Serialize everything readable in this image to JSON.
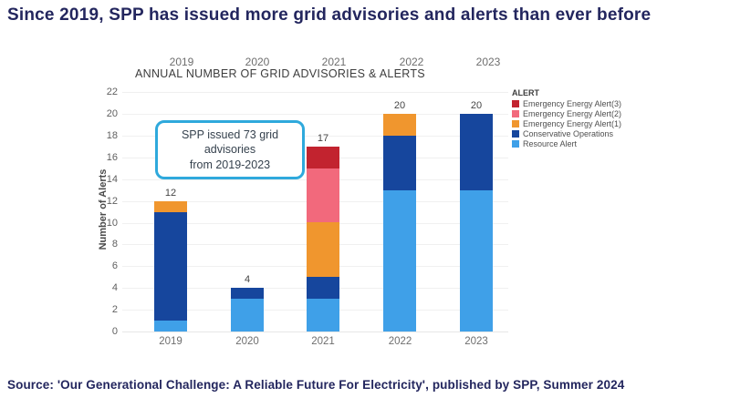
{
  "page": {
    "title": "Since 2019, SPP has issued more grid advisories and alerts than ever before",
    "source": "Source: 'Our Generational Challenge: A Reliable Future For Electricity', published by SPP, Summer 2024"
  },
  "annotation": {
    "line1": "SPP issued 73 grid advisories",
    "line2": "from 2019-2023"
  },
  "colors": {
    "title_text": "#23265E",
    "annotation_border": "#2FA9DC",
    "gridline": "#F0F0F0",
    "axis_text": "#5F5F5F"
  },
  "chart_data": {
    "type": "bar",
    "stacked": true,
    "title": "ANNUAL NUMBER OF GRID ADVISORIES & ALERTS",
    "xlabel": "",
    "ylabel": "Number of Alerts",
    "categories": [
      "2019",
      "2020",
      "2021",
      "2022",
      "2023"
    ],
    "series": [
      {
        "name": "Resource Alert",
        "color": "#3FA0E8",
        "values": [
          1,
          3,
          3,
          13,
          13
        ]
      },
      {
        "name": "Conservative Operations",
        "color": "#16469D",
        "values": [
          10,
          1,
          2,
          5,
          7
        ]
      },
      {
        "name": "Emergency Energy Alert(1)",
        "color": "#F0962E",
        "values": [
          1,
          0,
          5,
          2,
          0
        ]
      },
      {
        "name": "Emergency Energy Alert(2)",
        "color": "#F2697C",
        "values": [
          0,
          0,
          5,
          0,
          0
        ]
      },
      {
        "name": "Emergency Energy Alert(3)",
        "color": "#C2232F",
        "values": [
          0,
          0,
          2,
          0,
          0
        ]
      }
    ],
    "totals": [
      12,
      4,
      17,
      20,
      20
    ],
    "ylim": [
      0,
      22
    ],
    "ytick_step": 2,
    "grid": true,
    "legend_title": "ALERT",
    "legend_position": "right",
    "legend_order_top_to_bottom": [
      "Emergency Energy Alert(3)",
      "Emergency Energy Alert(2)",
      "Emergency Energy Alert(1)",
      "Conservative Operations",
      "Resource Alert"
    ]
  }
}
